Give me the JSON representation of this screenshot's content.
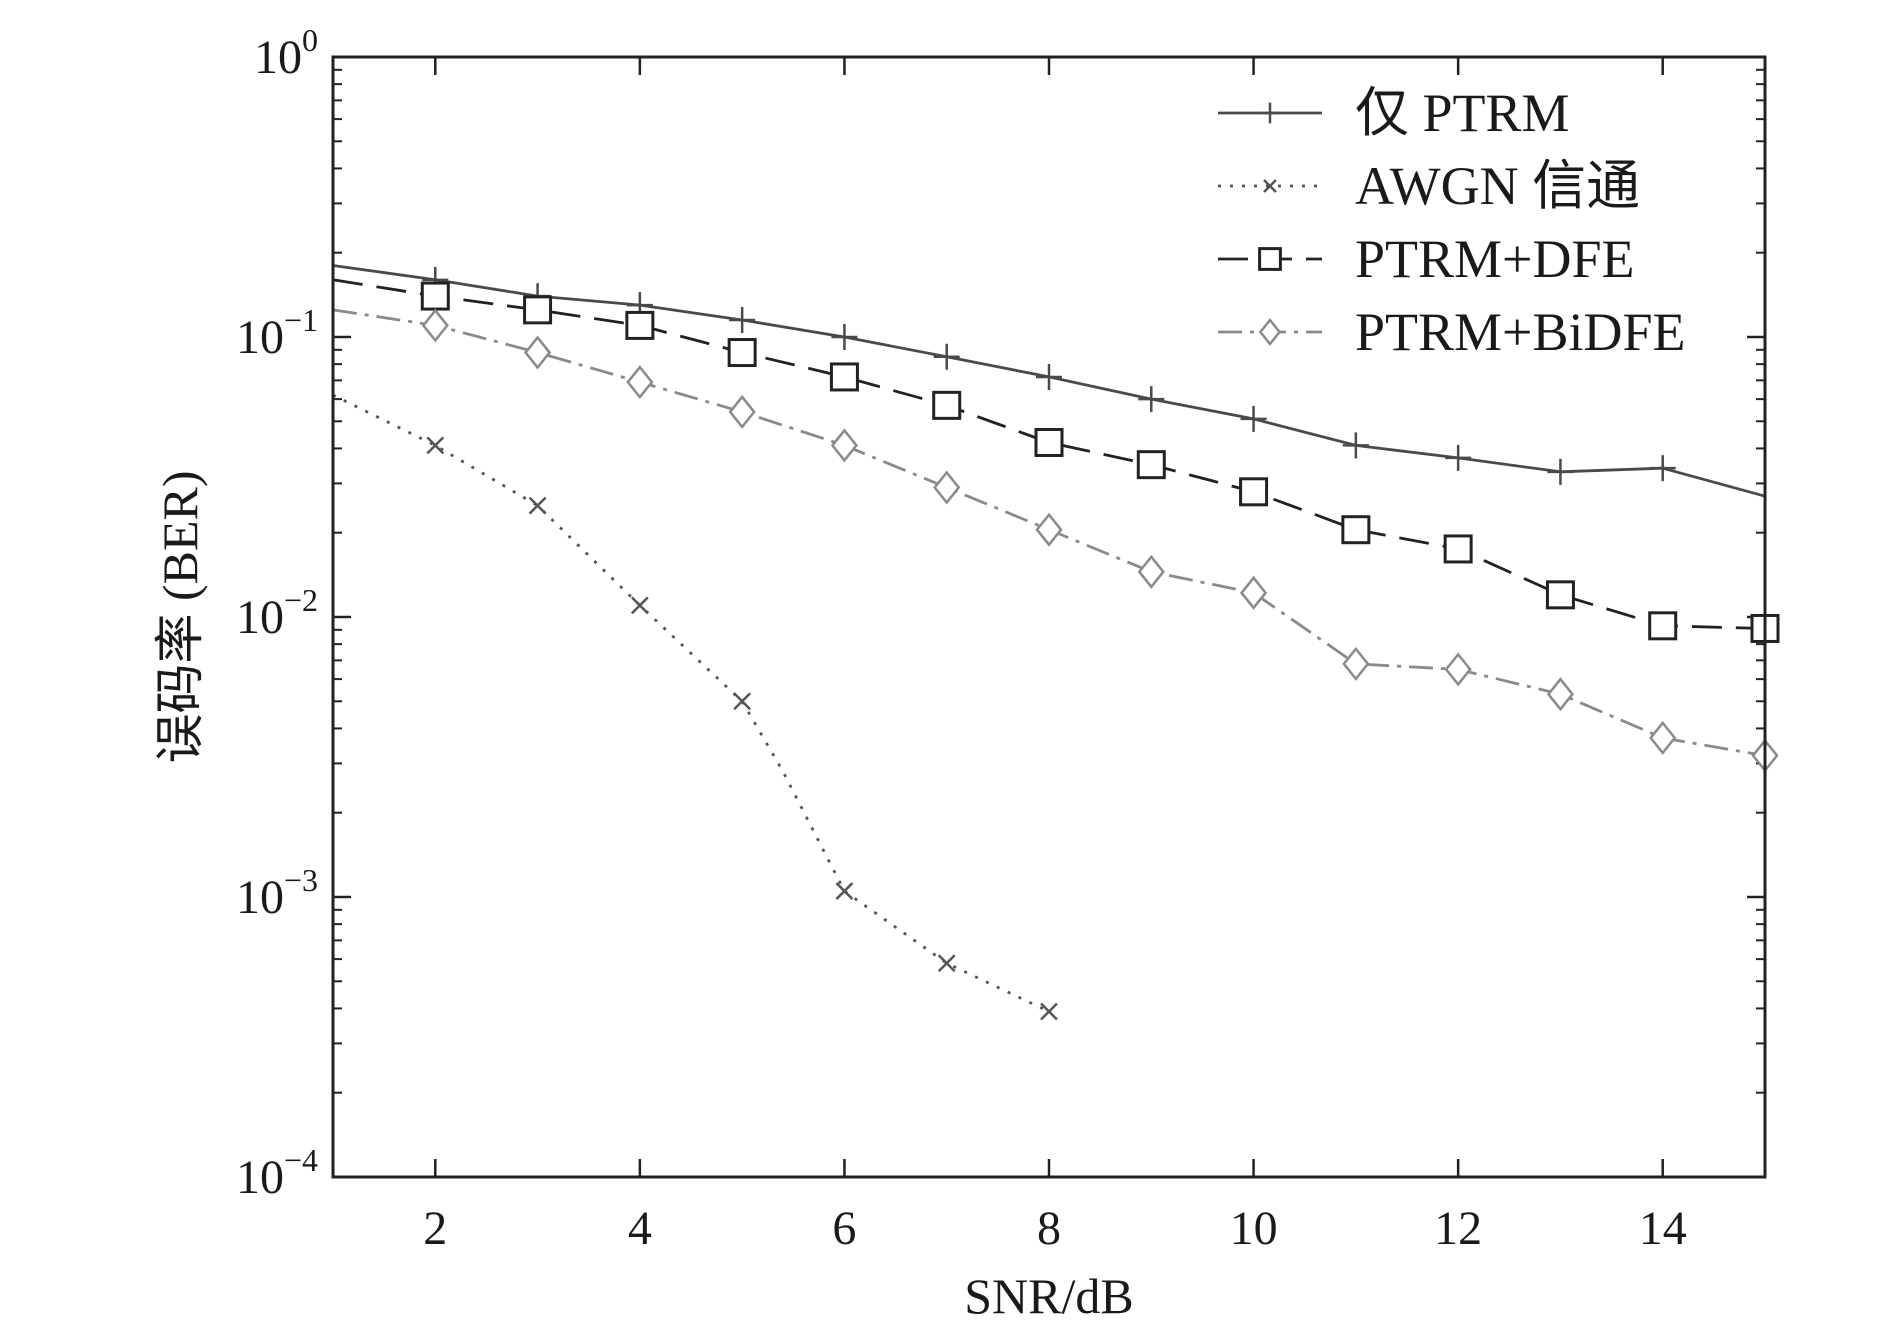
{
  "chart_data": {
    "type": "line",
    "title": "",
    "xlabel": "SNR/dB",
    "ylabel": "误码率 (BER)",
    "xlim": [
      1,
      15
    ],
    "ylim": [
      0.0001,
      1
    ],
    "yscale": "log",
    "grid": false,
    "legend_position": "top-right",
    "xticks": [
      2,
      4,
      6,
      8,
      10,
      12,
      14
    ],
    "xtick_labels": [
      "2",
      "4",
      "6",
      "8",
      "10",
      "12",
      "14"
    ],
    "yticks": [
      {
        "value": 1,
        "base": "10",
        "exp": "0"
      },
      {
        "value": 0.1,
        "base": "10",
        "exp": "−1"
      },
      {
        "value": 0.01,
        "base": "10",
        "exp": "−2"
      },
      {
        "value": 0.001,
        "base": "10",
        "exp": "−3"
      },
      {
        "value": 0.0001,
        "base": "10",
        "exp": "−4"
      }
    ],
    "series": [
      {
        "name": "仅 PTRM",
        "color": "#4a4a4a",
        "dash": "",
        "marker": "plus",
        "line": {
          "x": [
            1,
            2,
            3,
            4,
            5,
            6,
            7,
            8,
            9,
            10,
            11,
            12,
            13,
            14,
            15
          ],
          "y": [
            0.18,
            0.16,
            0.14,
            0.13,
            0.115,
            0.1,
            0.085,
            0.072,
            0.06,
            0.051,
            0.041,
            0.037,
            0.033,
            0.034,
            0.027
          ]
        },
        "markers": {
          "x": [
            2,
            3,
            4,
            5,
            6,
            7,
            8,
            9,
            10,
            11,
            12,
            13,
            14
          ],
          "y": [
            0.16,
            0.14,
            0.13,
            0.115,
            0.1,
            0.085,
            0.072,
            0.06,
            0.051,
            0.041,
            0.037,
            0.033,
            0.034
          ]
        }
      },
      {
        "name": "AWGN 信通",
        "color": "#555555",
        "dash": "3 9",
        "marker": "x",
        "line": {
          "x": [
            1,
            2,
            3,
            4,
            5,
            5.4,
            6,
            7,
            8
          ],
          "y": [
            0.062,
            0.041,
            0.025,
            0.011,
            0.005,
            0.0028,
            0.00105,
            0.00058,
            0.00039
          ]
        },
        "markers": {
          "x": [
            2,
            3,
            4,
            5,
            6,
            7,
            8
          ],
          "y": [
            0.041,
            0.025,
            0.011,
            0.005,
            0.00105,
            0.00058,
            0.00039
          ]
        }
      },
      {
        "name": "PTRM+DFE",
        "color": "#222222",
        "dash": "30 14",
        "marker": "square",
        "line": {
          "x": [
            1,
            2,
            3,
            4,
            5,
            6,
            7,
            8,
            9,
            10,
            11,
            12,
            13,
            14,
            15
          ],
          "y": [
            0.16,
            0.14,
            0.125,
            0.11,
            0.088,
            0.072,
            0.057,
            0.042,
            0.035,
            0.028,
            0.0205,
            0.0175,
            0.012,
            0.0093,
            0.0091
          ]
        },
        "markers": {
          "x": [
            2,
            3,
            4,
            5,
            6,
            7,
            8,
            9,
            10,
            11,
            12,
            13,
            14,
            15
          ],
          "y": [
            0.14,
            0.125,
            0.11,
            0.088,
            0.072,
            0.057,
            0.042,
            0.035,
            0.028,
            0.0205,
            0.0175,
            0.012,
            0.0093,
            0.0091
          ]
        }
      },
      {
        "name": "PTRM+BiDFE",
        "color": "#8a8a8a",
        "dash": "24 8 4 8",
        "marker": "diamond",
        "line": {
          "x": [
            1,
            2,
            3,
            4,
            5,
            6,
            7,
            8,
            9,
            10,
            11,
            12,
            13,
            14,
            15
          ],
          "y": [
            0.125,
            0.11,
            0.088,
            0.069,
            0.054,
            0.041,
            0.029,
            0.0205,
            0.0145,
            0.0122,
            0.0068,
            0.0065,
            0.0053,
            0.0037,
            0.0032
          ]
        },
        "markers": {
          "x": [
            2,
            3,
            4,
            5,
            6,
            7,
            8,
            9,
            10,
            11,
            12,
            13,
            14,
            15
          ],
          "y": [
            0.11,
            0.088,
            0.069,
            0.054,
            0.041,
            0.029,
            0.0205,
            0.0145,
            0.0122,
            0.0068,
            0.0065,
            0.0053,
            0.0037,
            0.0032
          ]
        }
      }
    ]
  }
}
